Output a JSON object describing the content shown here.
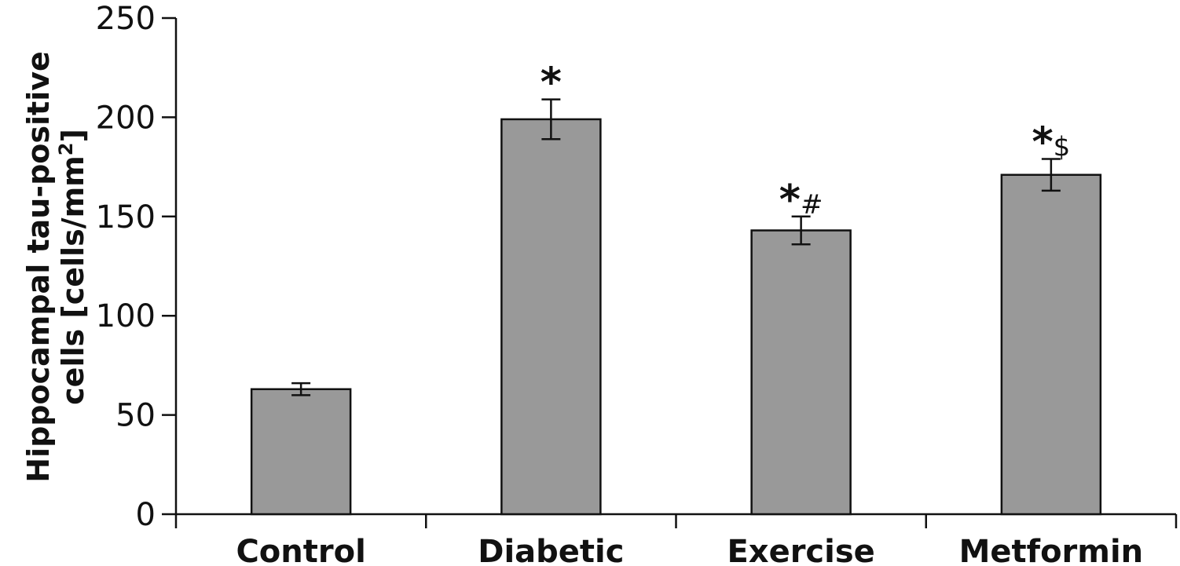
{
  "chart_data": {
    "type": "bar",
    "title": "",
    "xlabel": "",
    "ylabel": [
      "Hippocampal tau-positive",
      "cells [cells/mm",
      "2",
      "]"
    ],
    "categories": [
      "Control",
      "Diabetic",
      "Exercise",
      "Metformin"
    ],
    "values": [
      63,
      199,
      143,
      171
    ],
    "errors": [
      3,
      10,
      7,
      8
    ],
    "annotations": [
      {
        "star": "",
        "symbol": ""
      },
      {
        "star": "*",
        "symbol": ""
      },
      {
        "star": "*",
        "symbol": "#"
      },
      {
        "star": "*",
        "symbol": "$"
      }
    ],
    "ylim": [
      0,
      250
    ],
    "yticks": [
      0,
      50,
      100,
      150,
      200,
      250
    ],
    "grid": false,
    "legend": "none",
    "colors": {
      "bar": "#999999",
      "stroke": "#111111"
    }
  }
}
